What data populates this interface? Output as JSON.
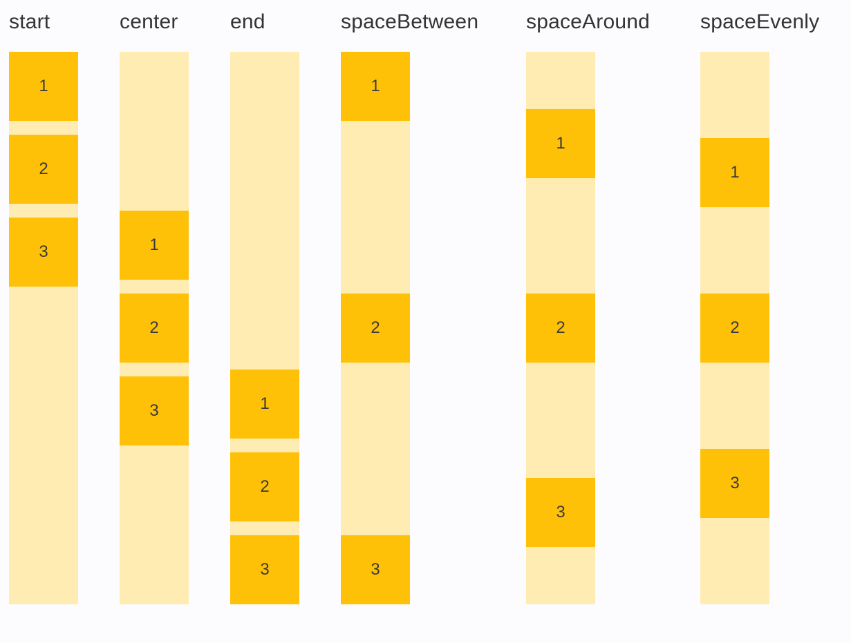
{
  "page": {
    "background": "#FCFCFF"
  },
  "colors": {
    "item_fill": "#FFC107",
    "track_fill": "#FFECB3",
    "label_text": "#333333",
    "item_text": "#3A3A3A"
  },
  "columns": [
    {
      "label": "start",
      "justify": "flex-start",
      "items": [
        "1",
        "2",
        "3"
      ]
    },
    {
      "label": "center",
      "justify": "center",
      "items": [
        "1",
        "2",
        "3"
      ]
    },
    {
      "label": "end",
      "justify": "flex-end",
      "items": [
        "1",
        "2",
        "3"
      ]
    },
    {
      "label": "spaceBetween",
      "justify": "space-between",
      "items": [
        "1",
        "2",
        "3"
      ]
    },
    {
      "label": "spaceAround",
      "justify": "space-around",
      "items": [
        "1",
        "2",
        "3"
      ]
    },
    {
      "label": "spaceEvenly",
      "justify": "space-evenly",
      "items": [
        "1",
        "2",
        "3"
      ]
    }
  ]
}
